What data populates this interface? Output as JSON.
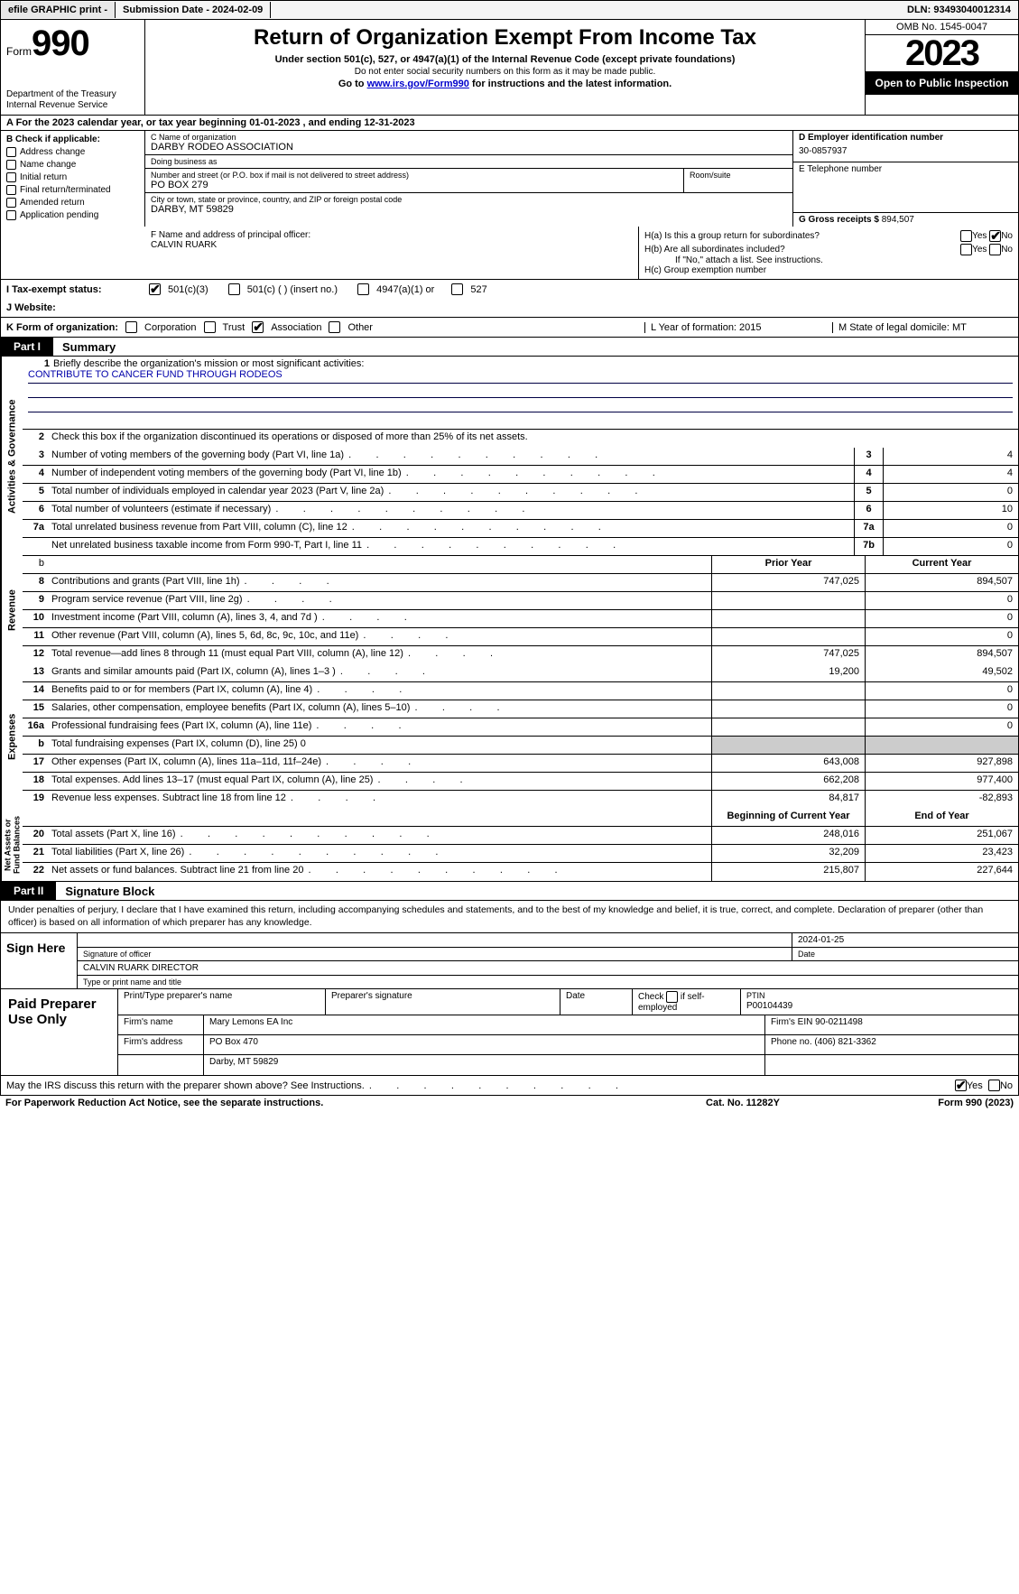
{
  "topbar": {
    "efile": "efile GRAPHIC print -",
    "submission": "Submission Date - 2024-02-09",
    "dln": "DLN: 93493040012314"
  },
  "header": {
    "form_prefix": "Form",
    "form_number": "990",
    "title": "Return of Organization Exempt From Income Tax",
    "subtitle1": "Under section 501(c), 527, or 4947(a)(1) of the Internal Revenue Code (except private foundations)",
    "subtitle2": "Do not enter social security numbers on this form as it may be made public.",
    "subtitle3_pre": "Go to ",
    "subtitle3_link": "www.irs.gov/Form990",
    "subtitle3_post": " for instructions and the latest information.",
    "dept": "Department of the Treasury\nInternal Revenue Service",
    "omb": "OMB No. 1545-0047",
    "year": "2023",
    "open": "Open to Public Inspection"
  },
  "row_a": "A For the 2023 calendar year, or tax year beginning 01-01-2023    , and ending 12-31-2023",
  "section_b": {
    "label": "B Check if applicable:",
    "items": [
      "Address change",
      "Name change",
      "Initial return",
      "Final return/terminated",
      "Amended return",
      "Application pending"
    ]
  },
  "section_c": {
    "name_label": "C Name of organization",
    "name": "DARBY RODEO ASSOCIATION",
    "dba_label": "Doing business as",
    "dba": "",
    "street_label": "Number and street (or P.O. box if mail is not delivered to street address)",
    "street": "PO BOX 279",
    "room_label": "Room/suite",
    "city_label": "City or town, state or province, country, and ZIP or foreign postal code",
    "city": "DARBY, MT   59829"
  },
  "section_d": {
    "label": "D Employer identification number",
    "ein": "30-0857937",
    "phone_label": "E Telephone number",
    "phone": "",
    "gross_label": "G Gross receipts $ ",
    "gross": "894,507"
  },
  "section_f": {
    "label": "F  Name and address of principal officer:",
    "name": "CALVIN RUARK"
  },
  "section_h": {
    "ha_label": "H(a)  Is this a group return for subordinates?",
    "hb_label": "H(b)  Are all subordinates included?",
    "hb_note": "If \"No,\" attach a list. See instructions.",
    "hc_label": "H(c)  Group exemption number",
    "yes": "Yes",
    "no": "No"
  },
  "status": {
    "label": "I   Tax-exempt status:",
    "opts": [
      "501(c)(3)",
      "501(c) (   ) (insert no.)",
      "4947(a)(1) or",
      "527"
    ]
  },
  "website_label": "J   Website:",
  "k_row": {
    "label": "K Form of organization:",
    "opts": [
      "Corporation",
      "Trust",
      "Association",
      "Other"
    ],
    "l": "L Year of formation: 2015",
    "m": "M State of legal domicile: MT"
  },
  "part1": {
    "tag": "Part I",
    "title": "Summary"
  },
  "mission_label": "Briefly describe the organization's mission or most significant activities:",
  "mission": "CONTRIBUTE TO CANCER FUND THROUGH RODEOS",
  "line2": "Check this box      if the organization discontinued its operations or disposed of more than 25% of its net assets.",
  "gov_lines": [
    {
      "n": "3",
      "d": "Number of voting members of the governing body (Part VI, line 1a)",
      "bn": "3",
      "v": "4"
    },
    {
      "n": "4",
      "d": "Number of independent voting members of the governing body (Part VI, line 1b)",
      "bn": "4",
      "v": "4"
    },
    {
      "n": "5",
      "d": "Total number of individuals employed in calendar year 2023 (Part V, line 2a)",
      "bn": "5",
      "v": "0"
    },
    {
      "n": "6",
      "d": "Total number of volunteers (estimate if necessary)",
      "bn": "6",
      "v": "10"
    },
    {
      "n": "7a",
      "d": "Total unrelated business revenue from Part VIII, column (C), line 12",
      "bn": "7a",
      "v": "0"
    },
    {
      "n": "",
      "d": "Net unrelated business taxable income from Form 990-T, Part I, line 11",
      "bn": "7b",
      "v": "0"
    }
  ],
  "col_hdrs": {
    "py": "Prior Year",
    "cy": "Current Year",
    "bcy": "Beginning of Current Year",
    "eoy": "End of Year"
  },
  "rev_lines": [
    {
      "n": "8",
      "d": "Contributions and grants (Part VIII, line 1h)",
      "py": "747,025",
      "cy": "894,507"
    },
    {
      "n": "9",
      "d": "Program service revenue (Part VIII, line 2g)",
      "py": "",
      "cy": "0"
    },
    {
      "n": "10",
      "d": "Investment income (Part VIII, column (A), lines 3, 4, and 7d )",
      "py": "",
      "cy": "0"
    },
    {
      "n": "11",
      "d": "Other revenue (Part VIII, column (A), lines 5, 6d, 8c, 9c, 10c, and 11e)",
      "py": "",
      "cy": "0"
    },
    {
      "n": "12",
      "d": "Total revenue—add lines 8 through 11 (must equal Part VIII, column (A), line 12)",
      "py": "747,025",
      "cy": "894,507"
    }
  ],
  "exp_lines": [
    {
      "n": "13",
      "d": "Grants and similar amounts paid (Part IX, column (A), lines 1–3 )",
      "py": "19,200",
      "cy": "49,502"
    },
    {
      "n": "14",
      "d": "Benefits paid to or for members (Part IX, column (A), line 4)",
      "py": "",
      "cy": "0"
    },
    {
      "n": "15",
      "d": "Salaries, other compensation, employee benefits (Part IX, column (A), lines 5–10)",
      "py": "",
      "cy": "0"
    },
    {
      "n": "16a",
      "d": "Professional fundraising fees (Part IX, column (A), line 11e)",
      "py": "",
      "cy": "0"
    },
    {
      "n": "b",
      "d": "Total fundraising expenses (Part IX, column (D), line 25) 0",
      "py": "SHADE",
      "cy": "SHADE"
    },
    {
      "n": "17",
      "d": "Other expenses (Part IX, column (A), lines 11a–11d, 11f–24e)",
      "py": "643,008",
      "cy": "927,898"
    },
    {
      "n": "18",
      "d": "Total expenses. Add lines 13–17 (must equal Part IX, column (A), line 25)",
      "py": "662,208",
      "cy": "977,400"
    },
    {
      "n": "19",
      "d": "Revenue less expenses. Subtract line 18 from line 12",
      "py": "84,817",
      "cy": "-82,893"
    }
  ],
  "net_lines": [
    {
      "n": "20",
      "d": "Total assets (Part X, line 16)",
      "py": "248,016",
      "cy": "251,067"
    },
    {
      "n": "21",
      "d": "Total liabilities (Part X, line 26)",
      "py": "32,209",
      "cy": "23,423"
    },
    {
      "n": "22",
      "d": "Net assets or fund balances. Subtract line 21 from line 20",
      "py": "215,807",
      "cy": "227,644"
    }
  ],
  "vert": {
    "gov": "Activities & Governance",
    "rev": "Revenue",
    "exp": "Expenses",
    "net": "Net Assets or\nFund Balances"
  },
  "part2": {
    "tag": "Part II",
    "title": "Signature Block"
  },
  "sig_decl": "Under penalties of perjury, I declare that I have examined this return, including accompanying schedules and statements, and to the best of my knowledge and belief, it is true, correct, and complete. Declaration of preparer (other than officer) is based on all information of which preparer has any knowledge.",
  "sign": {
    "here": "Sign Here",
    "date": "2024-01-25",
    "sig_label": "Signature of officer",
    "name": "CALVIN RUARK  DIRECTOR",
    "type_label": "Type or print name and title",
    "date_label": "Date"
  },
  "prep": {
    "label": "Paid Preparer Use Only",
    "h1": "Print/Type preparer's name",
    "h2": "Preparer's signature",
    "h3": "Date",
    "h4": "Check        if self-employed",
    "h5_l": "PTIN",
    "h5": "P00104439",
    "firm_name_l": "Firm's name",
    "firm_name": "Mary Lemons EA Inc",
    "firm_ein_l": "Firm's EIN",
    "firm_ein": "90-0211498",
    "firm_addr_l": "Firm's address",
    "firm_addr1": "PO Box 470",
    "firm_addr2": "Darby, MT   59829",
    "phone_l": "Phone no.",
    "phone": "(406) 821-3362"
  },
  "footer_q": "May the IRS discuss this return with the preparer shown above? See Instructions.",
  "footer_pra": "For Paperwork Reduction Act Notice, see the separate instructions.",
  "footer_cat": "Cat. No. 11282Y",
  "footer_form": "Form 990 (2023)"
}
